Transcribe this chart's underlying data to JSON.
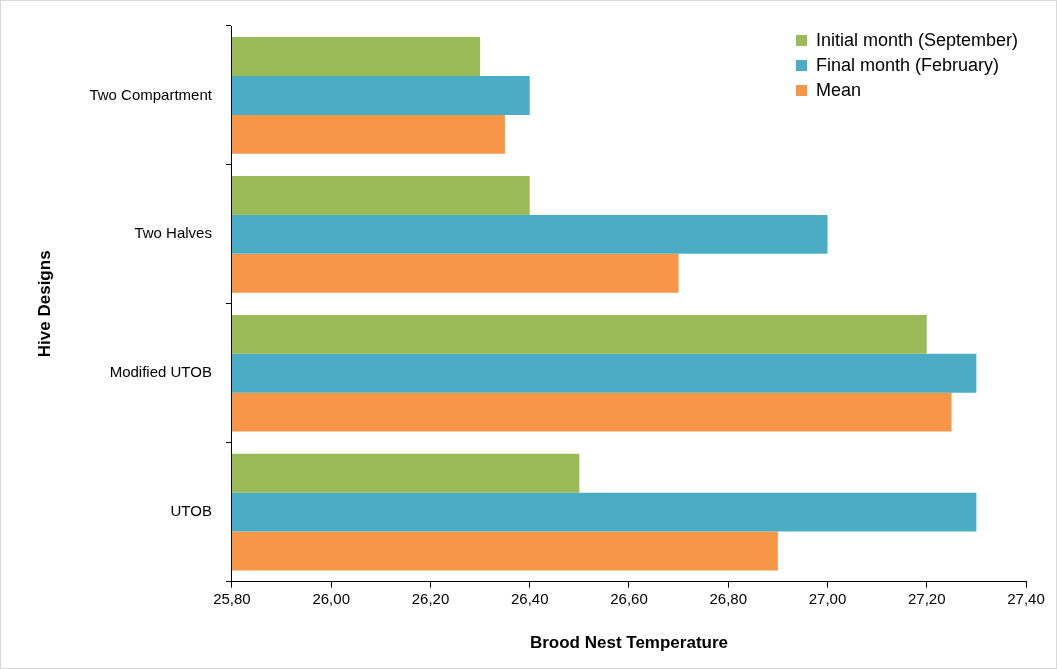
{
  "chart_data": {
    "type": "bar",
    "orientation": "horizontal",
    "xlabel": "Brood Nest Temperature",
    "ylabel": "Hive Designs",
    "categories": [
      "Two Compartment",
      "Two Halves",
      "Modified UTOB",
      "UTOB"
    ],
    "series": [
      {
        "name": "Initial month (September)",
        "color": "#9bbb59",
        "values": [
          26.3,
          26.4,
          27.2,
          26.5
        ]
      },
      {
        "name": "Final month (February)",
        "color": "#4bacc6",
        "values": [
          26.4,
          27.0,
          27.3,
          27.3
        ]
      },
      {
        "name": "Mean",
        "color": "#f79646",
        "values": [
          26.35,
          26.7,
          27.25,
          26.9
        ]
      }
    ],
    "xlim": [
      25.8,
      27.4
    ],
    "xticks": [
      {
        "value": 25.8,
        "label": "25,80"
      },
      {
        "value": 26.0,
        "label": "26,00"
      },
      {
        "value": 26.2,
        "label": "26,20"
      },
      {
        "value": 26.4,
        "label": "26,40"
      },
      {
        "value": 26.6,
        "label": "26,60"
      },
      {
        "value": 26.8,
        "label": "26,80"
      },
      {
        "value": 27.0,
        "label": "27,00"
      },
      {
        "value": 27.2,
        "label": "27,20"
      },
      {
        "value": 27.4,
        "label": "27,40"
      }
    ],
    "grid": false,
    "legend": "top right"
  }
}
